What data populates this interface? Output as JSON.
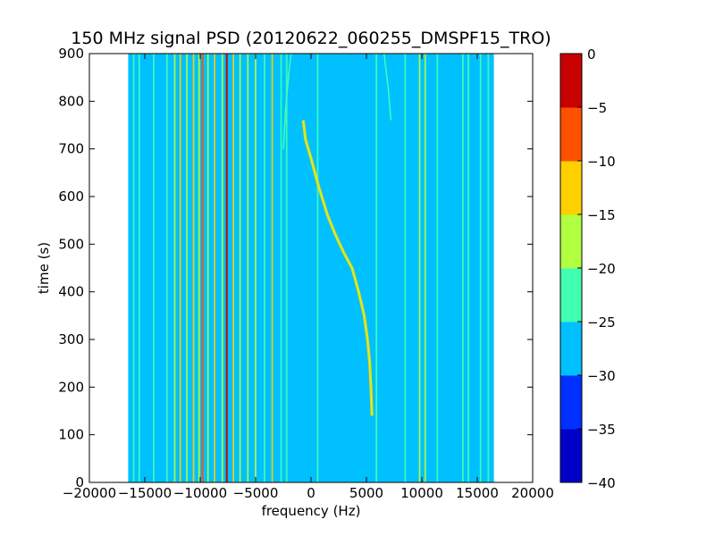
{
  "chart_data": {
    "type": "heatmap",
    "title": "150 MHz signal PSD (20120622_060255_DMSPF15_TRO)",
    "xlabel": "frequency (Hz)",
    "ylabel": "time (s)",
    "xlim": [
      -20000,
      20000
    ],
    "ylim": [
      0,
      900
    ],
    "xticks": [
      "−20000",
      "−15000",
      "−10000",
      "−5000",
      "0",
      "5000",
      "10000",
      "15000",
      "20000"
    ],
    "xtick_values": [
      -20000,
      -15000,
      -10000,
      -5000,
      0,
      5000,
      10000,
      15000,
      20000
    ],
    "yticks": [
      "0",
      "100",
      "200",
      "300",
      "400",
      "500",
      "600",
      "700",
      "800",
      "900"
    ],
    "ytick_values": [
      0,
      100,
      200,
      300,
      400,
      500,
      600,
      700,
      800,
      900
    ],
    "data_extent_x": [
      -16500,
      16500
    ],
    "background_level": -27.5,
    "colorbar": {
      "levels": [
        -40,
        -35,
        -30,
        -25,
        -20,
        -15,
        -10,
        -5,
        0
      ],
      "tick_labels": [
        "−40",
        "−35",
        "−30",
        "−25",
        "−20",
        "−15",
        "−10",
        "−5",
        "0"
      ],
      "colors": [
        "#0000c8",
        "#0030ff",
        "#00c0ff",
        "#40ffb0",
        "#b0ff40",
        "#ffd000",
        "#ff5000",
        "#c80000"
      ]
    },
    "vertical_bands": [
      {
        "f": -16000,
        "level": -22.5
      },
      {
        "f": -15500,
        "level": -22.5
      },
      {
        "f": -14200,
        "level": -22.5
      },
      {
        "f": -13000,
        "level": -22.5
      },
      {
        "f": -12300,
        "level": -17.5
      },
      {
        "f": -11800,
        "level": -12.5
      },
      {
        "f": -11200,
        "level": -17.5
      },
      {
        "f": -10600,
        "level": -12.5
      },
      {
        "f": -10100,
        "level": -17.5
      },
      {
        "f": -9800,
        "level": -7.5
      },
      {
        "f": -9300,
        "level": -17.5
      },
      {
        "f": -8700,
        "level": -12.5
      },
      {
        "f": -8000,
        "level": -17.5
      },
      {
        "f": -7600,
        "level": -2.5
      },
      {
        "f": -7000,
        "level": -12.5
      },
      {
        "f": -6400,
        "level": -17.5
      },
      {
        "f": -5700,
        "level": -17.5
      },
      {
        "f": -5000,
        "level": -17.5
      },
      {
        "f": -4200,
        "level": -22.5
      },
      {
        "f": -3500,
        "level": -12.5
      },
      {
        "f": -2700,
        "level": -22.5
      },
      {
        "f": -2200,
        "level": -22.5
      },
      {
        "f": 600,
        "level": -22.5
      },
      {
        "f": 5900,
        "level": -22.5
      },
      {
        "f": 8500,
        "level": -22.5
      },
      {
        "f": 9800,
        "level": -17.5
      },
      {
        "f": 10300,
        "level": -17.5
      },
      {
        "f": 11400,
        "level": -22.5
      },
      {
        "f": 13700,
        "level": -22.5
      },
      {
        "f": 14200,
        "level": -22.5
      },
      {
        "f": 15300,
        "level": -22.5
      },
      {
        "f": 16000,
        "level": -22.5
      }
    ],
    "doppler_trace": {
      "level": -12.5,
      "points": [
        [
          5500,
          140
        ],
        [
          5400,
          200
        ],
        [
          5300,
          250
        ],
        [
          5100,
          300
        ],
        [
          4800,
          350
        ],
        [
          4300,
          400
        ],
        [
          3700,
          450
        ],
        [
          3000,
          480
        ],
        [
          2200,
          520
        ],
        [
          1500,
          560
        ],
        [
          700,
          620
        ],
        [
          0,
          680
        ],
        [
          -500,
          720
        ],
        [
          -700,
          760
        ]
      ]
    },
    "faint_traces": [
      {
        "level": -22.5,
        "points": [
          [
            -2500,
            700
          ],
          [
            -2300,
            780
          ],
          [
            -2000,
            860
          ],
          [
            -1800,
            900
          ]
        ]
      },
      {
        "level": -22.5,
        "points": [
          [
            7200,
            760
          ],
          [
            7000,
            820
          ],
          [
            6800,
            860
          ],
          [
            6600,
            900
          ]
        ]
      }
    ]
  }
}
